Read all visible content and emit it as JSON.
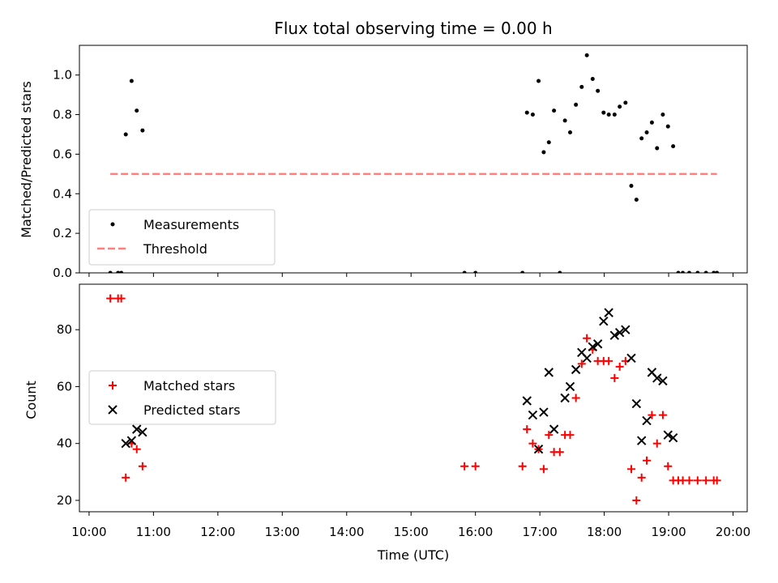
{
  "chart_data": {
    "title": "Flux total observing time = 0.00 h",
    "xlabel": "Time (UTC)",
    "x_unit": "hours",
    "xlim": [
      9.85,
      20.22
    ],
    "x_ticks": [
      {
        "v": 10,
        "label": "10:00"
      },
      {
        "v": 11,
        "label": "11:00"
      },
      {
        "v": 12,
        "label": "12:00"
      },
      {
        "v": 13,
        "label": "13:00"
      },
      {
        "v": 14,
        "label": "14:00"
      },
      {
        "v": 15,
        "label": "15:00"
      },
      {
        "v": 16,
        "label": "16:00"
      },
      {
        "v": 17,
        "label": "17:00"
      },
      {
        "v": 18,
        "label": "18:00"
      },
      {
        "v": 19,
        "label": "19:00"
      },
      {
        "v": 20,
        "label": "20:00"
      }
    ],
    "panels": [
      {
        "type": "scatter",
        "ylabel": "Matched/Predicted stars",
        "ylim": [
          0,
          1.15
        ],
        "y_ticks": [
          "0.0",
          "0.2",
          "0.4",
          "0.6",
          "0.8",
          "1.0"
        ],
        "legend_placement": "lower-left",
        "series": [
          {
            "name": "Measurements",
            "marker": "dot",
            "color": "#000000",
            "points": [
              [
                10.33,
                0
              ],
              [
                10.45,
                0
              ],
              [
                10.5,
                0
              ],
              [
                10.57,
                0.7
              ],
              [
                10.66,
                0.97
              ],
              [
                10.74,
                0.82
              ],
              [
                10.83,
                0.72
              ],
              [
                15.83,
                0
              ],
              [
                16.0,
                0
              ],
              [
                16.73,
                0
              ],
              [
                16.8,
                0.81
              ],
              [
                16.89,
                0.8
              ],
              [
                16.98,
                0.97
              ],
              [
                17.06,
                0.61
              ],
              [
                17.14,
                0.66
              ],
              [
                17.22,
                0.82
              ],
              [
                17.31,
                0
              ],
              [
                17.39,
                0.77
              ],
              [
                17.47,
                0.71
              ],
              [
                17.56,
                0.85
              ],
              [
                17.65,
                0.94
              ],
              [
                17.73,
                1.1
              ],
              [
                17.82,
                0.98
              ],
              [
                17.9,
                0.92
              ],
              [
                17.99,
                0.81
              ],
              [
                18.07,
                0.8
              ],
              [
                18.16,
                0.8
              ],
              [
                18.24,
                0.84
              ],
              [
                18.33,
                0.86
              ],
              [
                18.42,
                0.44
              ],
              [
                18.5,
                0.37
              ],
              [
                18.58,
                0.68
              ],
              [
                18.66,
                0.71
              ],
              [
                18.74,
                0.76
              ],
              [
                18.82,
                0.63
              ],
              [
                18.91,
                0.8
              ],
              [
                18.99,
                0.74
              ],
              [
                19.07,
                0.64
              ],
              [
                19.15,
                0
              ],
              [
                19.22,
                0
              ],
              [
                19.32,
                0
              ],
              [
                19.45,
                0
              ],
              [
                19.58,
                0
              ],
              [
                19.7,
                0
              ],
              [
                19.75,
                0
              ]
            ]
          },
          {
            "name": "Threshold",
            "marker": "dashed-line",
            "color": "#ff7f7f",
            "x": [
              10.33,
              19.75
            ],
            "y": [
              0.5,
              0.5
            ]
          }
        ]
      },
      {
        "type": "scatter",
        "ylabel": "Count",
        "ylim": [
          16,
          96
        ],
        "y_ticks": [
          "20",
          "40",
          "60",
          "80"
        ],
        "legend_placement": "center-left",
        "series": [
          {
            "name": "Matched stars",
            "marker": "plus",
            "color": "#ff0000",
            "points": [
              [
                10.33,
                91
              ],
              [
                10.45,
                91
              ],
              [
                10.5,
                91
              ],
              [
                10.57,
                28
              ],
              [
                10.66,
                40
              ],
              [
                10.74,
                38
              ],
              [
                10.83,
                32
              ],
              [
                15.83,
                32
              ],
              [
                16.0,
                32
              ],
              [
                16.73,
                32
              ],
              [
                16.8,
                45
              ],
              [
                16.89,
                40
              ],
              [
                16.98,
                38
              ],
              [
                17.06,
                31
              ],
              [
                17.14,
                43
              ],
              [
                17.22,
                37
              ],
              [
                17.31,
                37
              ],
              [
                17.39,
                43
              ],
              [
                17.47,
                43
              ],
              [
                17.56,
                56
              ],
              [
                17.65,
                68
              ],
              [
                17.73,
                77
              ],
              [
                17.82,
                73
              ],
              [
                17.9,
                69
              ],
              [
                17.99,
                69
              ],
              [
                18.07,
                69
              ],
              [
                18.16,
                63
              ],
              [
                18.24,
                67
              ],
              [
                18.33,
                69
              ],
              [
                18.42,
                31
              ],
              [
                18.5,
                20
              ],
              [
                18.58,
                28
              ],
              [
                18.66,
                34
              ],
              [
                18.74,
                50
              ],
              [
                18.82,
                40
              ],
              [
                18.91,
                50
              ],
              [
                18.99,
                32
              ],
              [
                19.07,
                27
              ],
              [
                19.15,
                27
              ],
              [
                19.22,
                27
              ],
              [
                19.32,
                27
              ],
              [
                19.45,
                27
              ],
              [
                19.58,
                27
              ],
              [
                19.7,
                27
              ],
              [
                19.75,
                27
              ]
            ]
          },
          {
            "name": "Predicted stars",
            "marker": "x",
            "color": "#000000",
            "points": [
              [
                10.57,
                40
              ],
              [
                10.66,
                41
              ],
              [
                10.74,
                45
              ],
              [
                10.83,
                44
              ],
              [
                16.8,
                55
              ],
              [
                16.89,
                50
              ],
              [
                16.98,
                38
              ],
              [
                17.06,
                51
              ],
              [
                17.14,
                65
              ],
              [
                17.22,
                45
              ],
              [
                17.39,
                56
              ],
              [
                17.47,
                60
              ],
              [
                17.56,
                66
              ],
              [
                17.65,
                72
              ],
              [
                17.73,
                70
              ],
              [
                17.82,
                74
              ],
              [
                17.9,
                75
              ],
              [
                17.99,
                83
              ],
              [
                18.07,
                86
              ],
              [
                18.16,
                78
              ],
              [
                18.24,
                79
              ],
              [
                18.33,
                80
              ],
              [
                18.42,
                70
              ],
              [
                18.5,
                54
              ],
              [
                18.58,
                41
              ],
              [
                18.66,
                48
              ],
              [
                18.74,
                65
              ],
              [
                18.82,
                63
              ],
              [
                18.91,
                62
              ],
              [
                18.99,
                43
              ],
              [
                19.07,
                42
              ]
            ]
          }
        ]
      }
    ]
  }
}
